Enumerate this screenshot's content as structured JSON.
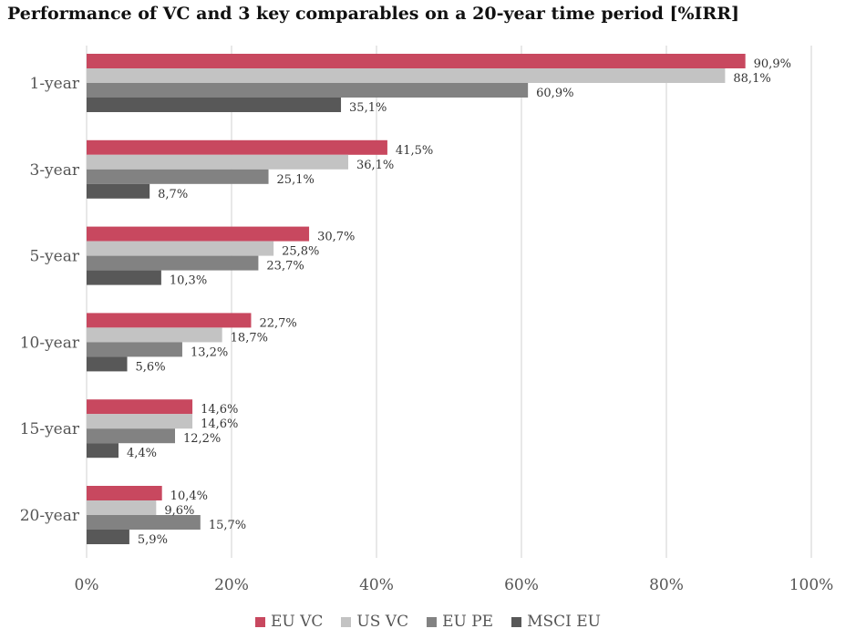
{
  "chart_data": {
    "type": "bar",
    "orientation": "horizontal",
    "title": "Performance of VC and 3 key comparables on a 20-year time period [%IRR]",
    "categories": [
      "1-year",
      "3-year",
      "5-year",
      "10-year",
      "15-year",
      "20-year"
    ],
    "series": [
      {
        "name": "EU VC",
        "color": "#c8485f",
        "values": [
          90.9,
          41.5,
          30.7,
          22.7,
          14.6,
          10.4
        ],
        "labels": [
          "90,9%",
          "41,5%",
          "30,7%",
          "22,7%",
          "14,6%",
          "10,4%"
        ]
      },
      {
        "name": "US VC",
        "color": "#c3c3c3",
        "values": [
          88.1,
          36.1,
          25.8,
          18.7,
          14.6,
          9.6
        ],
        "labels": [
          "88,1%",
          "36,1%",
          "25,8%",
          "18,7%",
          "14,6%",
          "9,6%"
        ]
      },
      {
        "name": "EU PE",
        "color": "#828282",
        "values": [
          60.9,
          25.1,
          23.7,
          13.2,
          12.2,
          15.7
        ],
        "labels": [
          "60,9%",
          "25,1%",
          "23,7%",
          "13,2%",
          "12,2%",
          "15,7%"
        ]
      },
      {
        "name": "MSCI EU",
        "color": "#585858",
        "values": [
          35.1,
          8.7,
          10.3,
          5.6,
          4.4,
          5.9
        ],
        "labels": [
          "35,1%",
          "8,7%",
          "10,3%",
          "5,6%",
          "4,4%",
          "5,9%"
        ]
      }
    ],
    "xlim": [
      0,
      100
    ],
    "xticks": [
      "0%",
      "20%",
      "40%",
      "60%",
      "80%",
      "100%"
    ],
    "xlabel": "",
    "ylabel": "",
    "grid": true,
    "legend_position": "bottom"
  }
}
